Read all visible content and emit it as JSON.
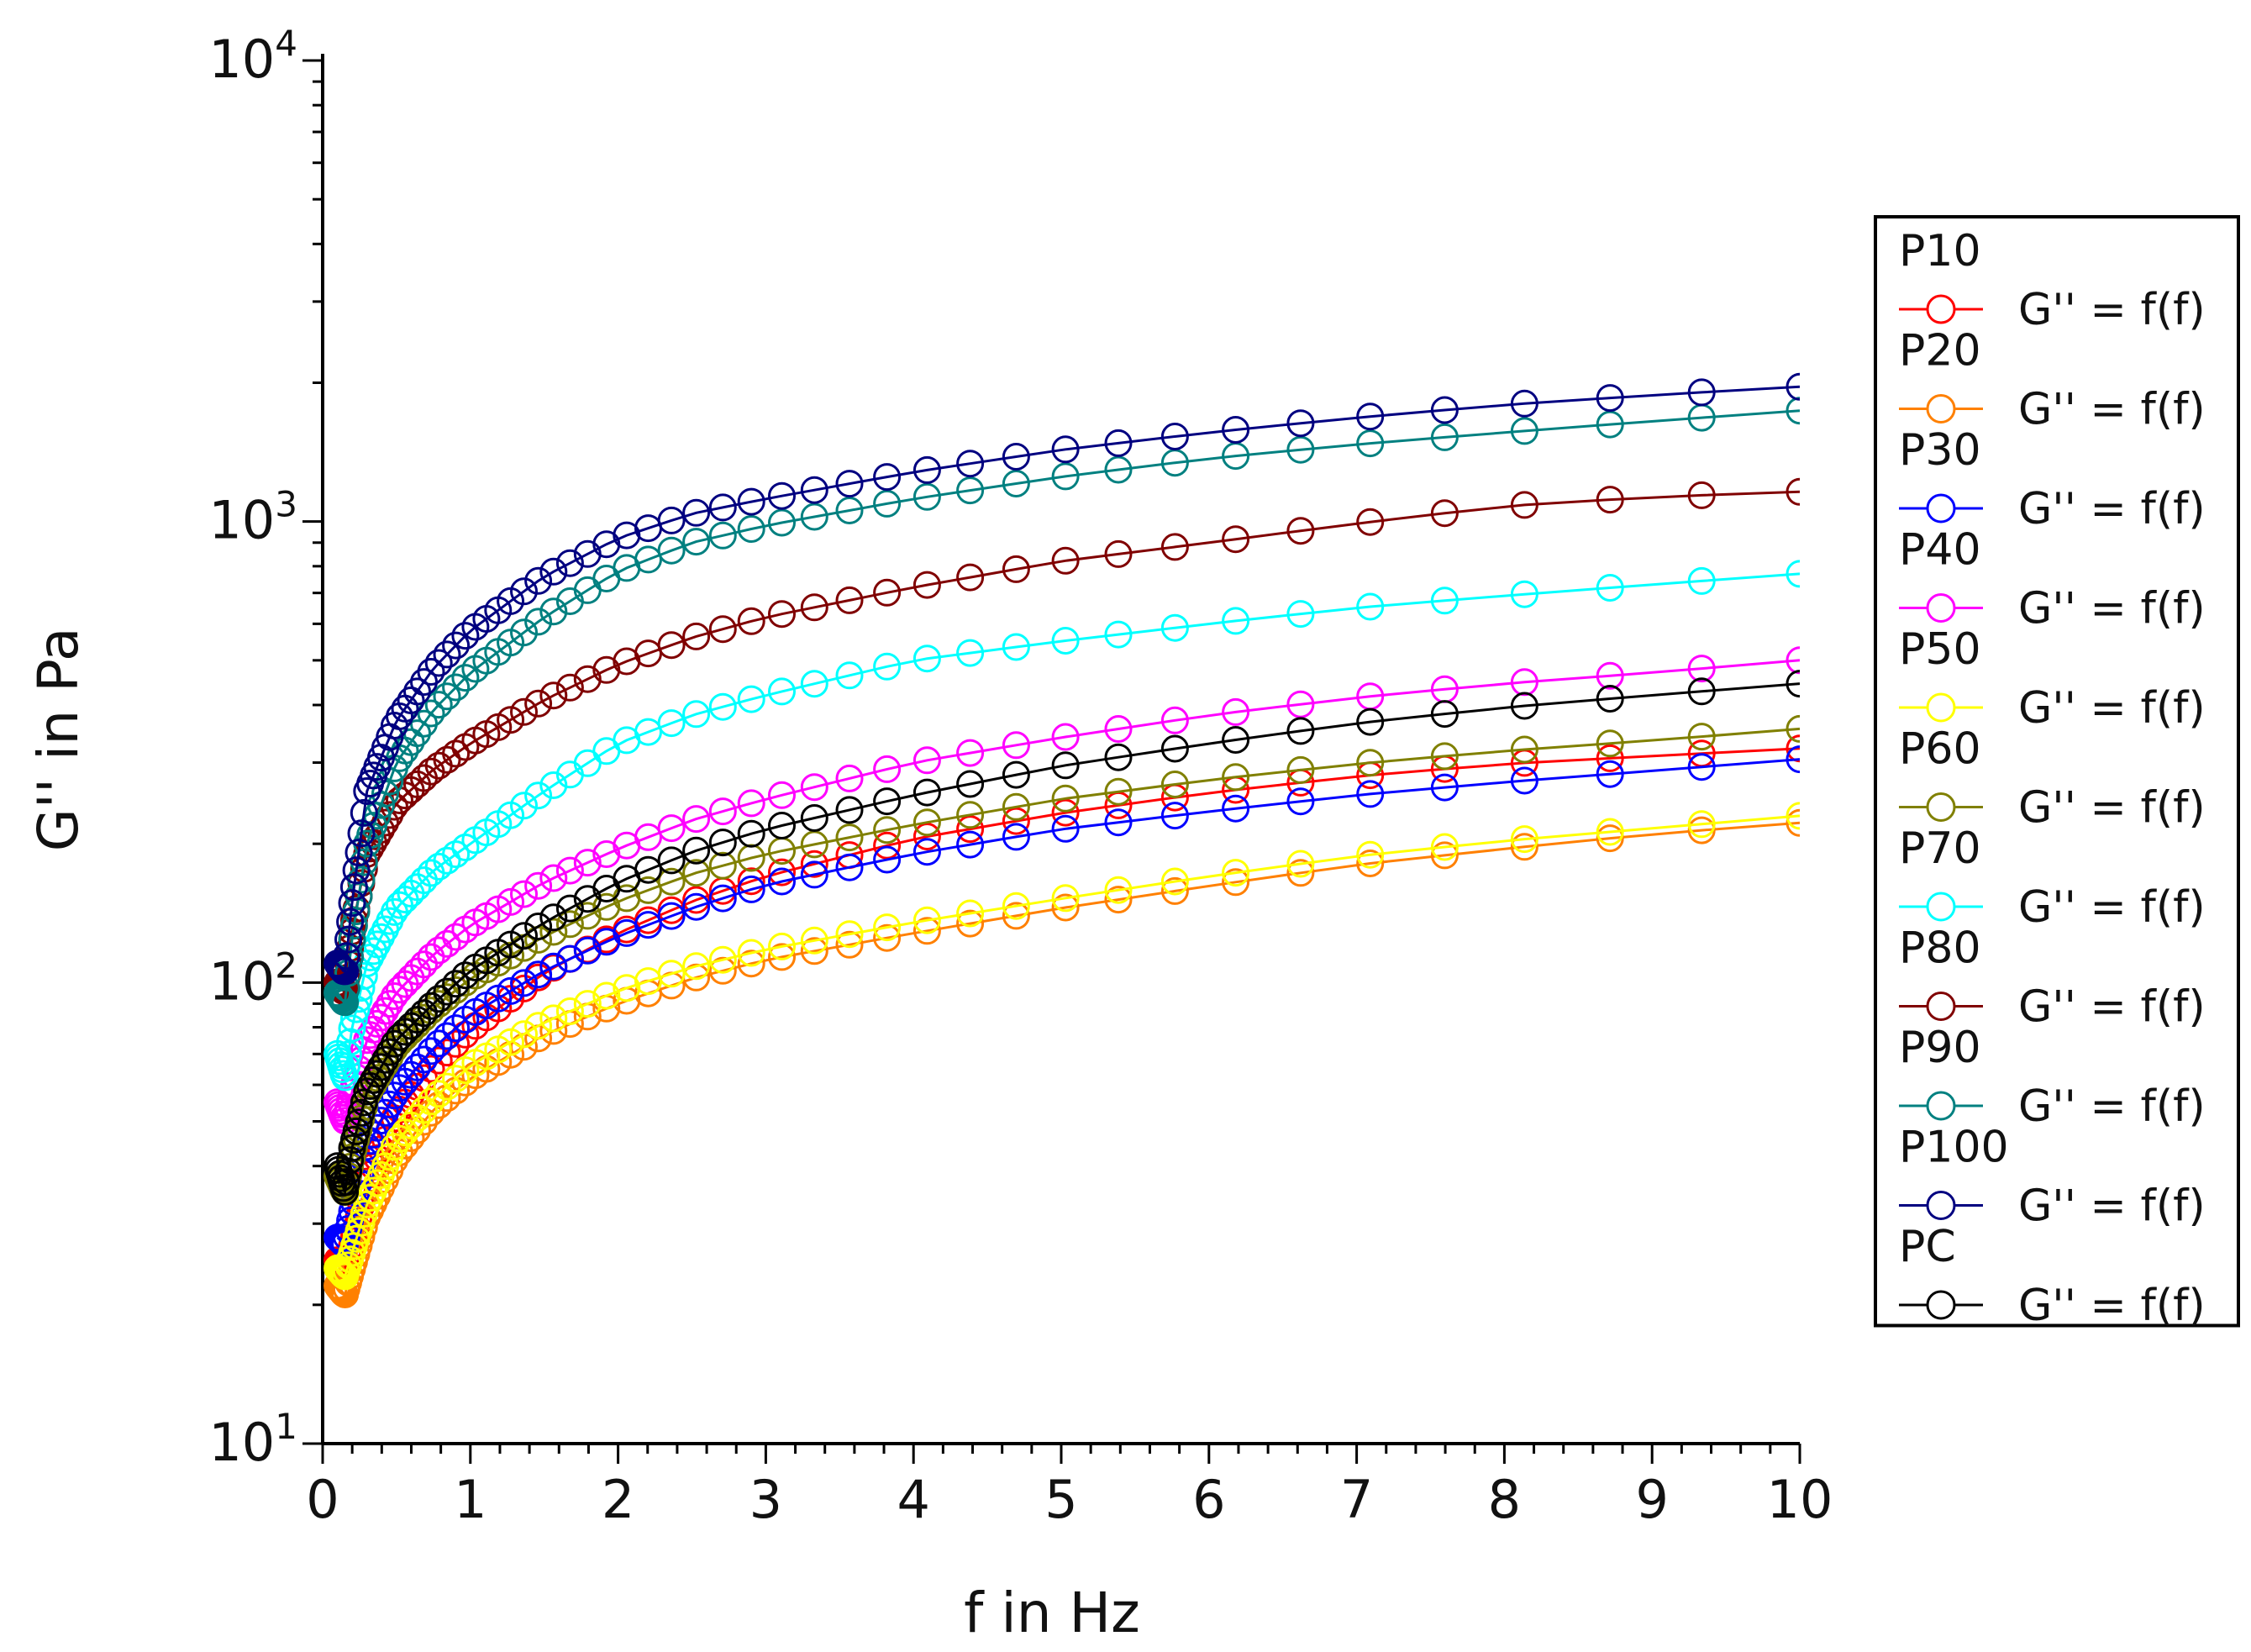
{
  "chart_data": {
    "type": "line",
    "title": "",
    "xlabel": "f in Hz",
    "ylabel": "G'' in Pa",
    "xlim": [
      0,
      10
    ],
    "ylim": [
      10,
      10000
    ],
    "yscale": "log",
    "grid": false,
    "legend_position": "right",
    "x_ticks": [
      "0",
      "1",
      "2",
      "3",
      "4",
      "5",
      "6",
      "7",
      "8",
      "9",
      "10"
    ],
    "y_ticks": [
      {
        "base": "10",
        "exp": "1"
      },
      {
        "base": "10",
        "exp": "2"
      },
      {
        "base": "10",
        "exp": "3"
      },
      {
        "base": "10",
        "exp": "4"
      }
    ],
    "marker": "open-circle",
    "x": [
      0.1,
      0.15,
      0.2,
      0.3,
      0.5,
      0.75,
      1,
      1.5,
      2,
      2.5,
      3,
      4,
      5,
      6,
      7,
      8,
      9,
      10
    ],
    "series": [
      {
        "name": "P10",
        "label": "G'' = f(f)",
        "color": "#ff0000",
        "values": [
          25,
          24,
          27,
          37,
          52,
          66,
          79,
          105,
          128,
          150,
          170,
          205,
          233,
          258,
          280,
          298,
          310,
          322
        ]
      },
      {
        "name": "P20",
        "label": "G'' = f(f)",
        "color": "#ff8000",
        "values": [
          22,
          21,
          24,
          31,
          42,
          53,
          62,
          77,
          90,
          102,
          112,
          128,
          145,
          162,
          180,
          195,
          210,
          222
        ]
      },
      {
        "name": "P30",
        "label": "G'' = f(f)",
        "color": "#0000ff",
        "values": [
          28,
          27,
          32,
          44,
          58,
          72,
          85,
          106,
          126,
          145,
          163,
          190,
          215,
          235,
          255,
          272,
          288,
          305
        ]
      },
      {
        "name": "P40",
        "label": "G'' = f(f)",
        "color": "#ff00ff",
        "values": [
          55,
          50,
          58,
          75,
          95,
          115,
          133,
          165,
          195,
          225,
          250,
          300,
          340,
          380,
          415,
          445,
          470,
          500
        ]
      },
      {
        "name": "P50",
        "label": "G'' = f(f)",
        "color": "#ffff00",
        "values": [
          24,
          23,
          26,
          33,
          45,
          56,
          66,
          82,
          96,
          108,
          118,
          135,
          152,
          170,
          188,
          203,
          216,
          230
        ]
      },
      {
        "name": "P60",
        "label": "G'' = f(f)",
        "color": "#808000",
        "values": [
          38,
          35,
          42,
          57,
          73,
          88,
          102,
          126,
          150,
          172,
          190,
          220,
          250,
          275,
          298,
          318,
          335,
          355
        ]
      },
      {
        "name": "P70",
        "label": "G'' = f(f)",
        "color": "#00ffff",
        "values": [
          70,
          62,
          80,
          110,
          145,
          175,
          200,
          260,
          330,
          380,
          420,
          500,
          550,
          600,
          650,
          690,
          730,
          770
        ]
      },
      {
        "name": "P80",
        "label": "G'' = f(f)",
        "color": "#800000",
        "values": [
          100,
          95,
          130,
          190,
          245,
          290,
          330,
          410,
          490,
          560,
          620,
          720,
          820,
          900,
          990,
          1080,
          1130,
          1160
        ]
      },
      {
        "name": "P90",
        "label": "G'' = f(f)",
        "color": "#008080",
        "values": [
          95,
          90,
          125,
          200,
          300,
          390,
          470,
          620,
          780,
          900,
          980,
          1120,
          1250,
          1370,
          1470,
          1560,
          1650,
          1740
        ]
      },
      {
        "name": "P100",
        "label": "G'' = f(f)",
        "color": "#000080",
        "values": [
          110,
          105,
          150,
          260,
          370,
          480,
          580,
          760,
          920,
          1040,
          1120,
          1280,
          1430,
          1560,
          1680,
          1790,
          1880,
          1960
        ]
      },
      {
        "name": "PC",
        "label": "G'' = f(f)",
        "color": "#000000",
        "values": [
          40,
          35,
          44,
          58,
          75,
          90,
          106,
          135,
          165,
          192,
          215,
          255,
          295,
          330,
          365,
          395,
          420,
          445
        ]
      }
    ]
  }
}
